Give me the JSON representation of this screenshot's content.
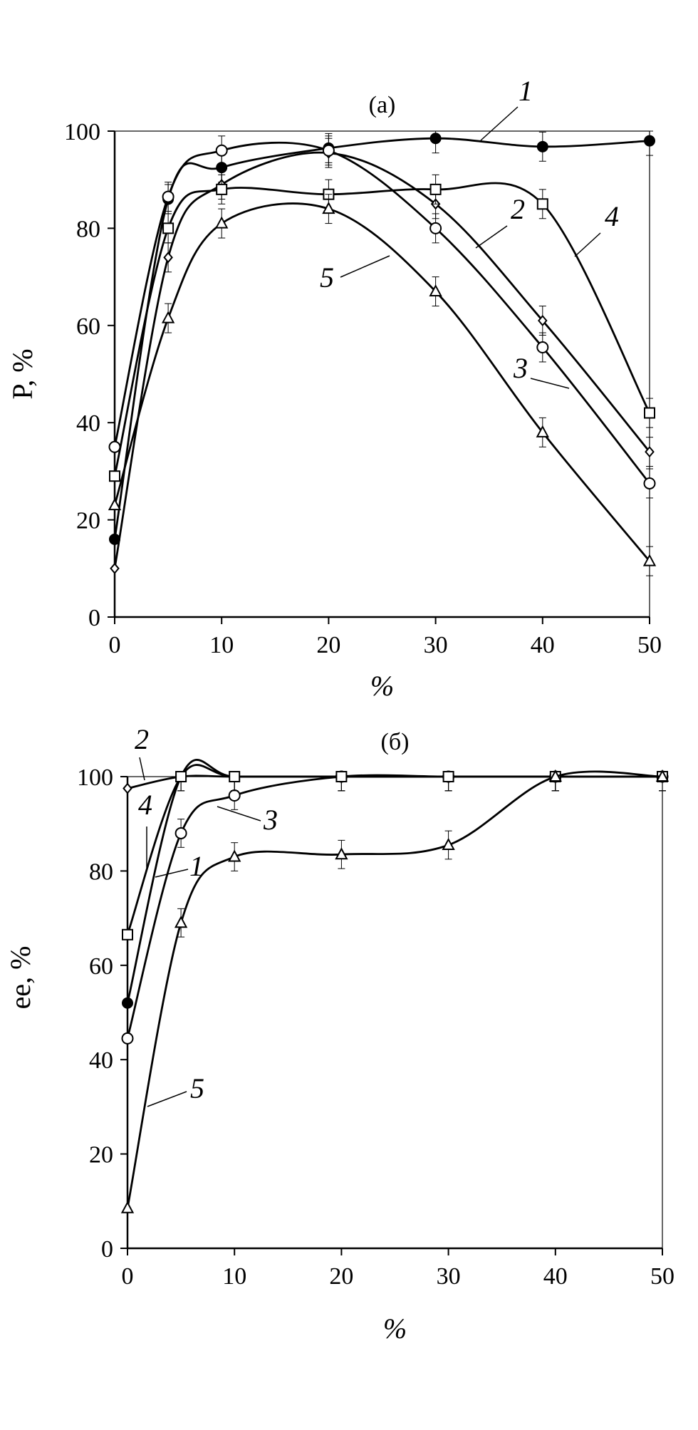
{
  "chart_data": [
    {
      "type": "line",
      "title": "(a)",
      "xlabel": "%",
      "ylabel": "P, %",
      "xlim": [
        0,
        50
      ],
      "ylim": [
        0,
        100
      ],
      "xticks": [
        "0",
        "10",
        "20",
        "30",
        "40",
        "50"
      ],
      "yticks": [
        "0",
        "20",
        "40",
        "60",
        "80",
        "100"
      ],
      "grid": false,
      "legend": "none (curves labelled in plot)",
      "series": [
        {
          "name": "1",
          "marker": "filled-circle",
          "x": [
            0,
            5,
            10,
            20,
            30,
            40,
            50
          ],
          "y": [
            16,
            86,
            92.5,
            96.5,
            98.5,
            96.8,
            98
          ]
        },
        {
          "name": "2",
          "marker": "diamond",
          "x": [
            0,
            5,
            10,
            20,
            30,
            40,
            50
          ],
          "y": [
            10,
            74,
            89,
            95.5,
            85,
            61,
            34
          ]
        },
        {
          "name": "3",
          "marker": "open-circle",
          "x": [
            0,
            5,
            10,
            20,
            30,
            40,
            50
          ],
          "y": [
            35,
            86.5,
            96,
            96,
            80,
            55.5,
            27.5
          ]
        },
        {
          "name": "4",
          "marker": "square",
          "x": [
            0,
            5,
            10,
            20,
            30,
            40,
            50
          ],
          "y": [
            29,
            80,
            88,
            87,
            88,
            85,
            42
          ]
        },
        {
          "name": "5",
          "marker": "triangle",
          "x": [
            0,
            5,
            10,
            20,
            30,
            40,
            50
          ],
          "y": [
            23,
            61.5,
            81,
            84,
            67,
            38,
            11.5
          ]
        }
      ]
    },
    {
      "type": "line",
      "title": "(б)",
      "xlabel": "%",
      "ylabel": "ee, %",
      "xlim": [
        0,
        50
      ],
      "ylim": [
        0,
        100
      ],
      "xticks": [
        "0",
        "10",
        "20",
        "30",
        "40",
        "50"
      ],
      "yticks": [
        "0",
        "20",
        "40",
        "60",
        "80",
        "100"
      ],
      "grid": false,
      "legend": "none (curves labelled in plot)",
      "series": [
        {
          "name": "1",
          "marker": "filled-circle",
          "x": [
            0,
            5,
            10,
            20,
            30,
            40,
            50
          ],
          "y": [
            52,
            100,
            100,
            100,
            100,
            100,
            100
          ]
        },
        {
          "name": "2",
          "marker": "diamond",
          "x": [
            0,
            5,
            10,
            20,
            30,
            40,
            50
          ],
          "y": [
            97.5,
            100,
            100,
            100,
            100,
            100,
            100
          ]
        },
        {
          "name": "3",
          "marker": "open-circle",
          "x": [
            0,
            5,
            10,
            20,
            30,
            40,
            50
          ],
          "y": [
            44.5,
            88,
            96,
            100,
            100,
            100,
            100
          ]
        },
        {
          "name": "4",
          "marker": "square",
          "x": [
            0,
            5,
            10,
            20,
            30,
            40,
            50
          ],
          "y": [
            66.5,
            100,
            100,
            100,
            100,
            100,
            100
          ]
        },
        {
          "name": "5",
          "marker": "triangle",
          "x": [
            0,
            5,
            10,
            20,
            30,
            40,
            50
          ],
          "y": [
            8.5,
            69,
            83,
            83.5,
            85.5,
            100,
            100
          ]
        }
      ]
    }
  ]
}
